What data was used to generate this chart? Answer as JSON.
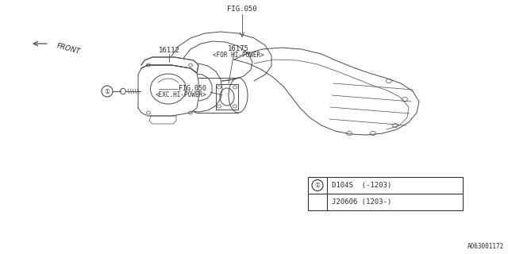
{
  "bg_color": "#ffffff",
  "line_color": "#4a4a4a",
  "text_color": "#2a2a2a",
  "fig_width": 6.4,
  "fig_height": 3.2,
  "dpi": 100,
  "labels": {
    "fig050_top": "FIG.050",
    "fig050_mid": "FIG.050",
    "exc_hi_power": "<EXC.HI-POWER>",
    "part_16175": "16175",
    "for_hi_power": "<FOR HI-POWER>",
    "part_16112": "16112",
    "front": "FRONT",
    "ref_code": "A063001172",
    "table_row1_text": "D104S  (-1203)",
    "table_row2_text": "J20606 (1203-)"
  }
}
